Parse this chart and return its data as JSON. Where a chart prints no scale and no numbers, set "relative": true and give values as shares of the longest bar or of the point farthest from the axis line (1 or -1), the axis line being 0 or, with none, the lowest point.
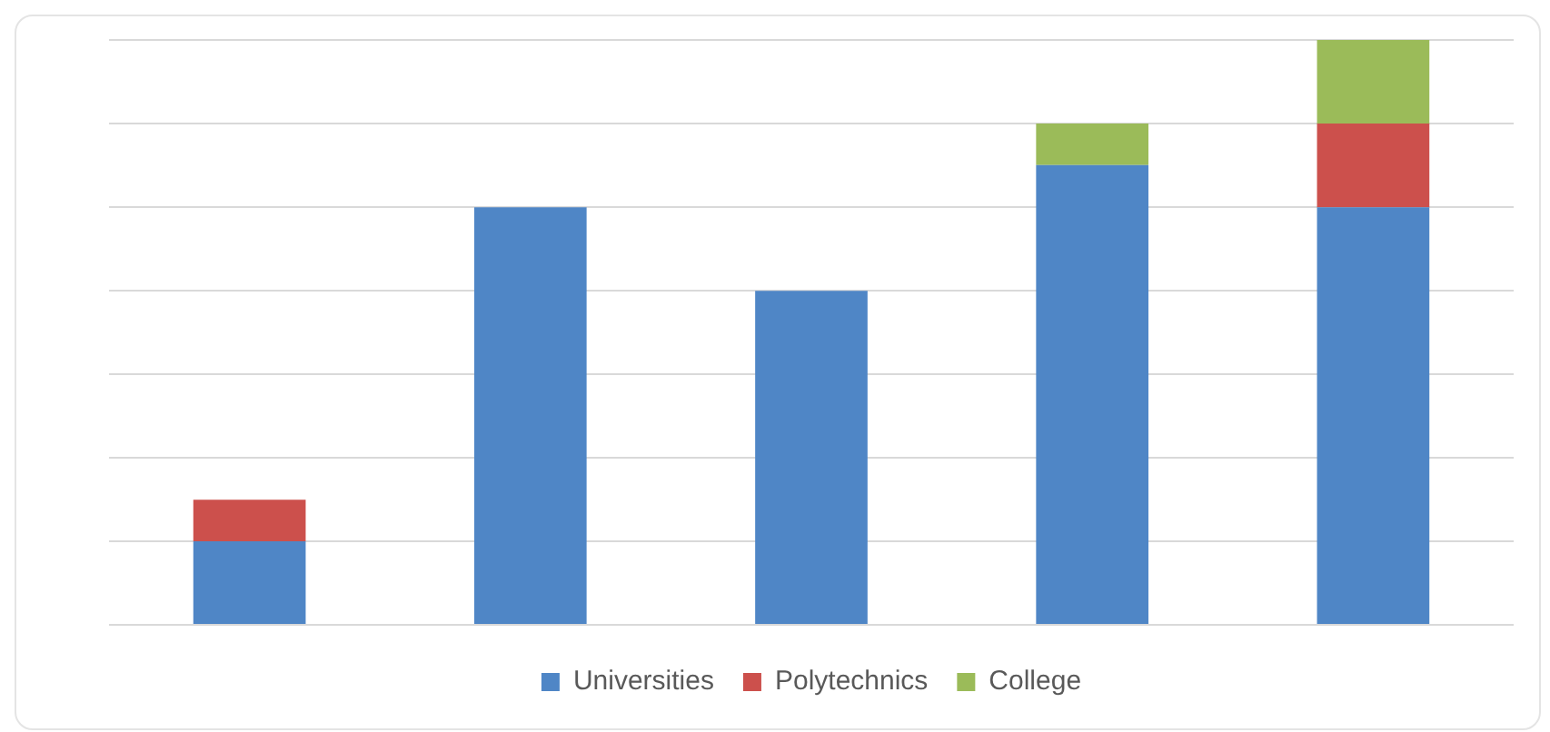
{
  "chart_data": {
    "type": "bar",
    "stacked": true,
    "relative": true,
    "categories": [
      null,
      null,
      null,
      null,
      null
    ],
    "series": [
      {
        "name": "Universities",
        "color": "#4f86c6",
        "values": [
          0.143,
          0.714,
          0.571,
          0.786,
          0.714
        ]
      },
      {
        "name": "Polytechnics",
        "color": "#cc504c",
        "values": [
          0.071,
          0,
          0,
          0,
          0.143
        ]
      },
      {
        "name": "College",
        "color": "#9bbb59",
        "values": [
          0,
          0,
          0,
          0.071,
          0.143
        ]
      }
    ],
    "grid": "y",
    "legend": "bottom"
  }
}
